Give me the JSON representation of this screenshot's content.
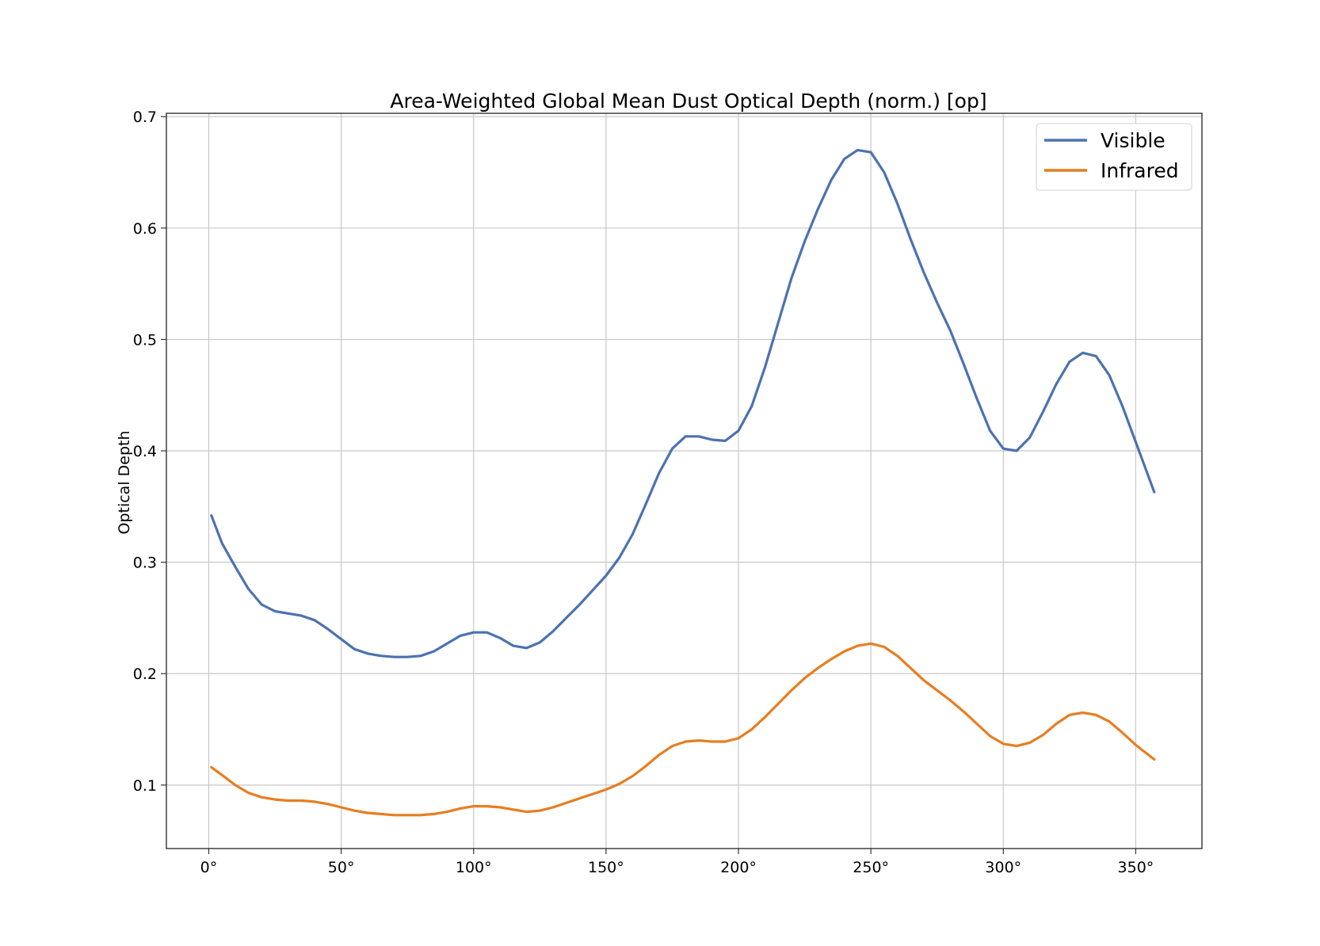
{
  "colors": {
    "visible": "#4c72b0",
    "infrared": "#e67e22",
    "grid": "#c8c8c8",
    "axes": "#333333",
    "background": "#ffffff"
  },
  "chart_data": {
    "type": "line",
    "title": "Area-Weighted Global Mean Dust Optical Depth (norm.) [op]",
    "xlabel": "",
    "ylabel": "Optical Depth",
    "xlim": [
      -16,
      375
    ],
    "ylim": [
      0.043,
      0.703
    ],
    "x_ticks": [
      0,
      50,
      100,
      150,
      200,
      250,
      300,
      350
    ],
    "x_tick_labels": [
      "0°",
      "50°",
      "100°",
      "150°",
      "200°",
      "250°",
      "300°",
      "350°"
    ],
    "y_ticks": [
      0.1,
      0.2,
      0.3,
      0.4,
      0.5,
      0.6,
      0.7
    ],
    "y_tick_labels": [
      "0.1",
      "0.2",
      "0.3",
      "0.4",
      "0.5",
      "0.6",
      "0.7"
    ],
    "grid": true,
    "legend_position": "top-right",
    "x": [
      1,
      5,
      10,
      15,
      20,
      25,
      30,
      35,
      40,
      45,
      50,
      55,
      60,
      65,
      70,
      75,
      80,
      85,
      90,
      95,
      100,
      105,
      110,
      115,
      120,
      125,
      130,
      135,
      140,
      145,
      150,
      155,
      160,
      165,
      170,
      175,
      180,
      185,
      190,
      195,
      200,
      205,
      210,
      215,
      220,
      225,
      230,
      235,
      240,
      245,
      250,
      255,
      260,
      265,
      270,
      275,
      280,
      285,
      290,
      295,
      300,
      305,
      310,
      315,
      320,
      325,
      330,
      335,
      340,
      345,
      350,
      357
    ],
    "series": [
      {
        "name": "Visible",
        "color": "#4c72b0",
        "values": [
          0.342,
          0.317,
          0.296,
          0.276,
          0.262,
          0.256,
          0.254,
          0.252,
          0.248,
          0.24,
          0.231,
          0.222,
          0.218,
          0.216,
          0.215,
          0.215,
          0.216,
          0.22,
          0.227,
          0.234,
          0.237,
          0.237,
          0.232,
          0.225,
          0.223,
          0.228,
          0.238,
          0.25,
          0.262,
          0.275,
          0.288,
          0.304,
          0.325,
          0.352,
          0.38,
          0.402,
          0.413,
          0.413,
          0.41,
          0.409,
          0.418,
          0.44,
          0.475,
          0.515,
          0.555,
          0.588,
          0.617,
          0.643,
          0.662,
          0.67,
          0.668,
          0.65,
          0.622,
          0.59,
          0.56,
          0.533,
          0.508,
          0.478,
          0.447,
          0.418,
          0.402,
          0.4,
          0.412,
          0.435,
          0.46,
          0.48,
          0.488,
          0.485,
          0.468,
          0.44,
          0.408,
          0.363
        ]
      },
      {
        "name": "Infrared",
        "color": "#e67e22",
        "values": [
          0.116,
          0.109,
          0.1,
          0.093,
          0.089,
          0.087,
          0.086,
          0.086,
          0.085,
          0.083,
          0.08,
          0.077,
          0.075,
          0.074,
          0.073,
          0.073,
          0.073,
          0.074,
          0.076,
          0.079,
          0.081,
          0.081,
          0.08,
          0.078,
          0.076,
          0.077,
          0.08,
          0.084,
          0.088,
          0.092,
          0.096,
          0.101,
          0.108,
          0.117,
          0.127,
          0.135,
          0.139,
          0.14,
          0.139,
          0.139,
          0.142,
          0.15,
          0.161,
          0.173,
          0.185,
          0.196,
          0.205,
          0.213,
          0.22,
          0.225,
          0.227,
          0.224,
          0.216,
          0.205,
          0.194,
          0.185,
          0.176,
          0.166,
          0.155,
          0.144,
          0.137,
          0.135,
          0.138,
          0.145,
          0.155,
          0.163,
          0.165,
          0.163,
          0.157,
          0.147,
          0.136,
          0.123
        ]
      }
    ]
  }
}
